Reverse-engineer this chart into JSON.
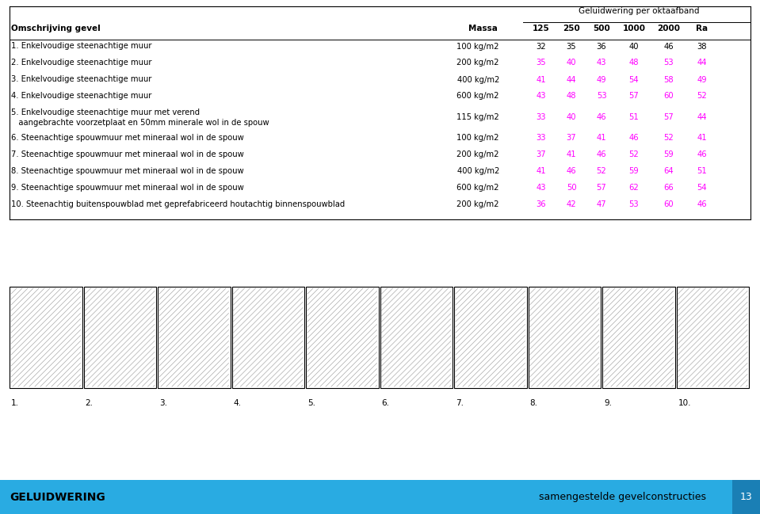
{
  "background_color": "#ffffff",
  "header_title": "Geluidwering per oktaafband",
  "rows": [
    {
      "label": "1. Enkelvoudige steenachtige muur",
      "label2": null,
      "massa": "100 kg/m2",
      "vals": [
        32,
        35,
        36,
        40,
        46,
        38
      ],
      "magenta": false
    },
    {
      "label": "2. Enkelvoudige steenachtige muur",
      "label2": null,
      "massa": "200 kg/m2",
      "vals": [
        35,
        40,
        43,
        48,
        53,
        44
      ],
      "magenta": true
    },
    {
      "label": "3. Enkelvoudige steenachtige muur",
      "label2": null,
      "massa": "400 kg/m2",
      "vals": [
        41,
        44,
        49,
        54,
        58,
        49
      ],
      "magenta": true
    },
    {
      "label": "4. Enkelvoudige steenachtige muur",
      "label2": null,
      "massa": "600 kg/m2",
      "vals": [
        43,
        48,
        53,
        57,
        60,
        52
      ],
      "magenta": true
    },
    {
      "label": "5. Enkelvoudige steenachtige muur met verend",
      "label2": "   aangebrachte voorzetplaat en 50mm minerale wol in de spouw",
      "massa": "115 kg/m2",
      "vals": [
        33,
        40,
        46,
        51,
        57,
        44
      ],
      "magenta": true
    },
    {
      "label": "6. Steenachtige spouwmuur met mineraal wol in de spouw",
      "label2": null,
      "massa": "100 kg/m2",
      "vals": [
        33,
        37,
        41,
        46,
        52,
        41
      ],
      "magenta": true
    },
    {
      "label": "7. Steenachtige spouwmuur met mineraal wol in de spouw",
      "label2": null,
      "massa": "200 kg/m2",
      "vals": [
        37,
        41,
        46,
        52,
        59,
        46
      ],
      "magenta": true
    },
    {
      "label": "8. Steenachtige spouwmuur met mineraal wol in de spouw",
      "label2": null,
      "massa": "400 kg/m2",
      "vals": [
        41,
        46,
        52,
        59,
        64,
        51
      ],
      "magenta": true
    },
    {
      "label": "9. Steenachtige spouwmuur met mineraal wol in de spouw",
      "label2": null,
      "massa": "600 kg/m2",
      "vals": [
        43,
        50,
        57,
        62,
        66,
        54
      ],
      "magenta": true
    },
    {
      "label": "10. Steenachtig buitenspouwblad met geprefabriceerd houtachtig binnenspouwblad",
      "label2": null,
      "massa": "200 kg/m2",
      "vals": [
        36,
        42,
        47,
        53,
        60,
        46
      ],
      "magenta": true
    }
  ],
  "col_headers": [
    "Omschrijving gevel",
    "Massa",
    "125",
    "250",
    "500",
    "1000",
    "2000",
    "Ra"
  ],
  "footer_left": "GELUIDWERING",
  "footer_right": "samengestelde gevelconstructies",
  "footer_page": "13",
  "footer_bg": "#29ABE2",
  "footer_page_bg": "#1a7fb5",
  "highlight_color": "#FF00FF",
  "normal_color": "#000000",
  "diagram_labels": [
    "1.",
    "2.",
    "3.",
    "4.",
    "5.",
    "6.",
    "7.",
    "8.",
    "9.",
    "10."
  ]
}
